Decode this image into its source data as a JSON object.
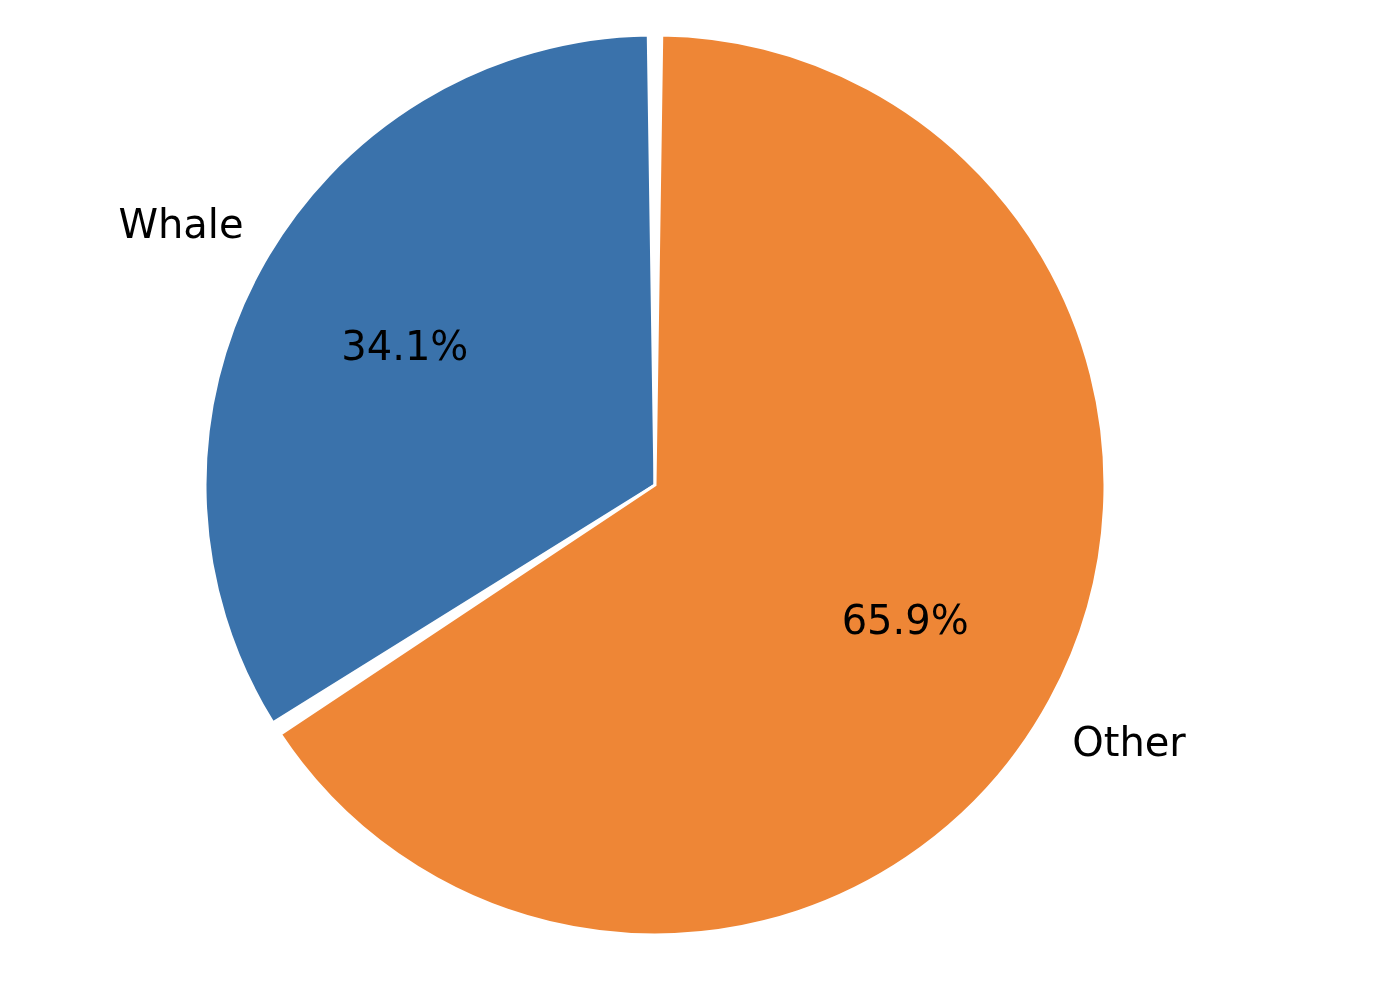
{
  "chart_data": {
    "type": "pie",
    "categories": [
      "Whale",
      "Other"
    ],
    "values": [
      34.1,
      65.9
    ],
    "colors": [
      "#3a72ab",
      "#ee8636"
    ],
    "value_labels": [
      "34.1%",
      "65.9%"
    ],
    "legend": false
  }
}
